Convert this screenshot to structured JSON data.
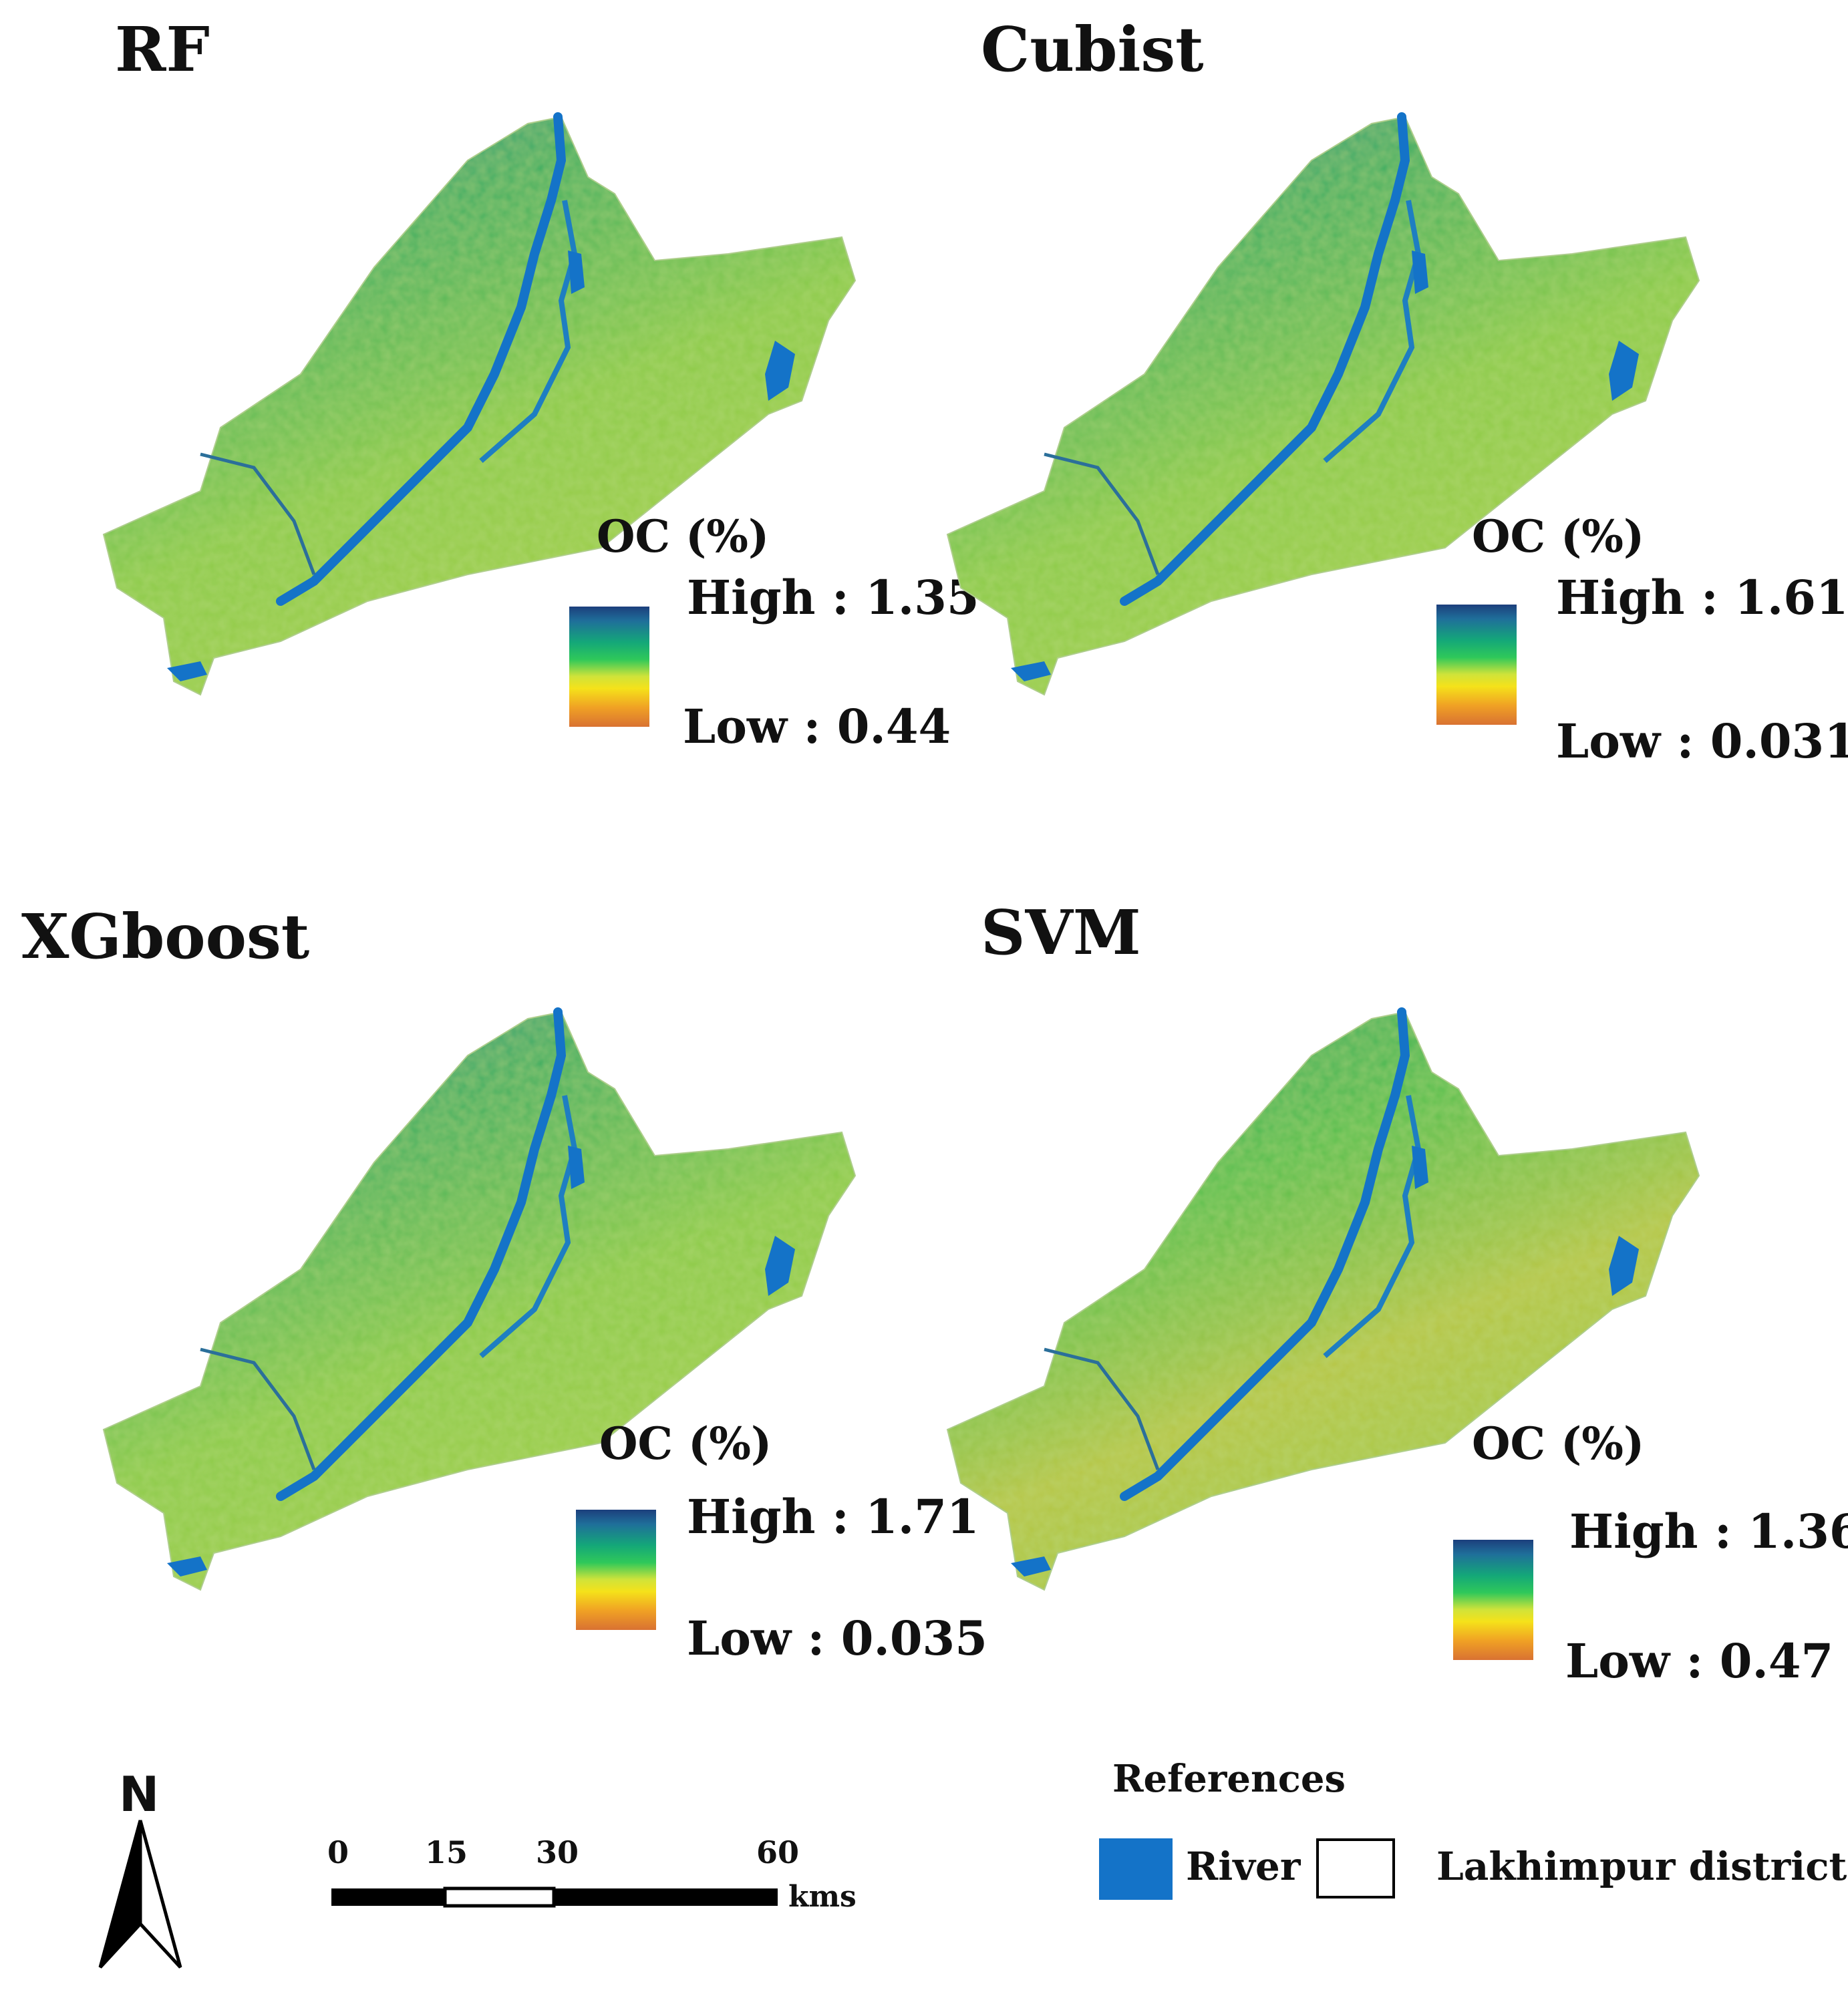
{
  "panels": [
    {
      "title": "RF",
      "legend": {
        "title": "OC (%)",
        "high": "High : 1.35",
        "low": "Low : 0.44"
      }
    },
    {
      "title": "Cubist",
      "legend": {
        "title": "OC (%)",
        "high": "High : 1.61",
        "low": "Low : 0.031"
      }
    },
    {
      "title": "XGboost",
      "legend": {
        "title": "OC (%)",
        "high": "High : 1.71",
        "low": "Low : 0.035"
      }
    },
    {
      "title": "SVM",
      "legend": {
        "title": "OC (%)",
        "high": "High : 1.36",
        "low": "Low : 0.47"
      }
    }
  ],
  "north_arrow": {
    "label": "N"
  },
  "scale_bar": {
    "ticks": [
      "0",
      "15",
      "30",
      "60"
    ],
    "unit": "kms"
  },
  "references": {
    "title": "References",
    "river": "River",
    "district": "Lakhimpur district"
  },
  "colors": {
    "river": "#1473c8",
    "high": "#1c3f7c",
    "mid": "#2fc85a",
    "low": "#d97232"
  }
}
